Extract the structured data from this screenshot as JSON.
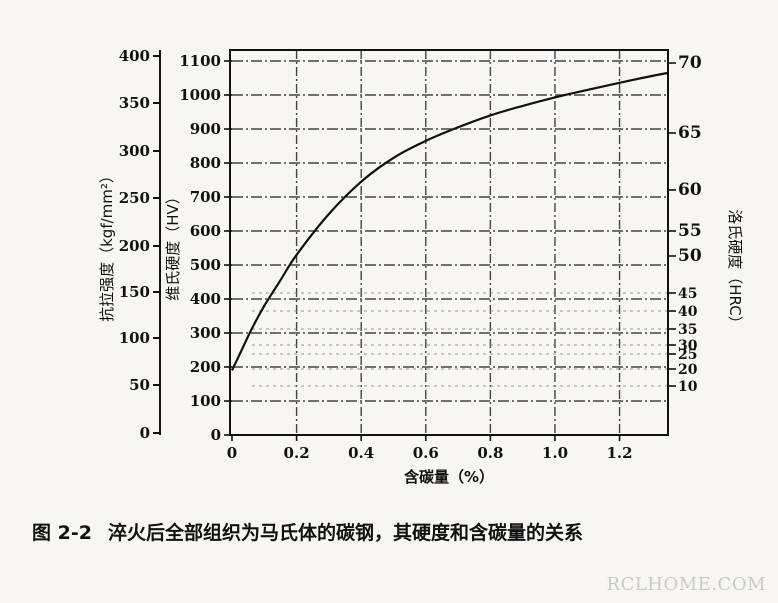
{
  "chart_data": {
    "type": "line",
    "title": "",
    "xlabel": "含碳量（%）",
    "xlim": [
      0,
      1.35
    ],
    "x_ticks": [
      0,
      0.2,
      0.4,
      0.6,
      0.8,
      1.0,
      1.2
    ],
    "x_tick_labels": [
      "0",
      "0.2",
      "0.4",
      "0.6",
      "0.8",
      "1.0",
      "1.2"
    ],
    "y_axes": {
      "tensile": {
        "label": "抗拉强度（kgf/mm²）",
        "ticks": [
          0,
          50,
          100,
          150,
          200,
          250,
          300,
          350,
          400
        ],
        "tick_labels": [
          "0",
          "50",
          "100",
          "150",
          "200",
          "250",
          "300",
          "350",
          "400"
        ]
      },
      "vickers": {
        "label": "维氏硬度（HV）",
        "ylim": [
          0,
          1150
        ],
        "ticks": [
          0,
          100,
          200,
          300,
          400,
          500,
          600,
          700,
          800,
          900,
          1000,
          1100
        ],
        "tick_labels": [
          "0",
          "100",
          "200",
          "300",
          "400",
          "500",
          "600",
          "700",
          "800",
          "900",
          "1000",
          "1100"
        ]
      },
      "rockwell": {
        "label": "洛氏硬度（HRC）",
        "ticks": [
          10,
          20,
          25,
          30,
          35,
          40,
          45,
          50,
          55,
          60,
          65,
          70
        ],
        "tick_labels": [
          "10",
          "20",
          "25",
          "30",
          "35",
          "40",
          "45",
          "50",
          "55",
          "60",
          "65",
          "70"
        ]
      }
    },
    "series": [
      {
        "x": [
          0.0,
          0.03,
          0.06,
          0.1,
          0.15,
          0.2,
          0.3,
          0.4,
          0.5,
          0.6,
          0.7,
          0.8,
          0.9,
          1.0,
          1.1,
          1.2,
          1.3,
          1.35
        ],
        "y": [
          190,
          250,
          310,
          380,
          455,
          530,
          650,
          745,
          815,
          865,
          905,
          940,
          968,
          993,
          1015,
          1036,
          1056,
          1065
        ]
      }
    ],
    "grid": true
  },
  "caption": {
    "figure_number": "图 2-2",
    "text": "淬火后全部组织为马氏体的碳钢，其硬度和含碳量的关系"
  },
  "watermark": "RCLHOME.COM"
}
